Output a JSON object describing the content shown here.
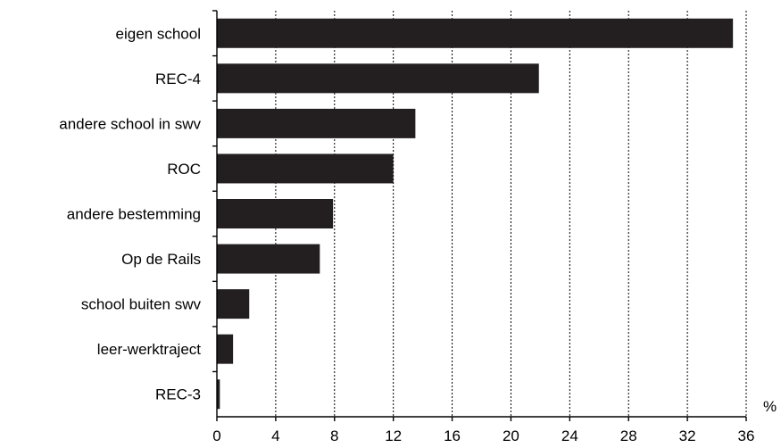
{
  "chart_data": {
    "type": "bar",
    "orientation": "horizontal",
    "title": "",
    "xlabel": "",
    "ylabel": "",
    "unit_label": "%",
    "categories": [
      "eigen school",
      "REC-4",
      "andere school in swv",
      "ROC",
      "andere bestemming",
      "Op de Rails",
      "school buiten swv",
      "leer-werktraject",
      "REC-3"
    ],
    "values": [
      35.1,
      21.9,
      13.5,
      12.0,
      7.9,
      7.0,
      2.2,
      1.1,
      0.2
    ],
    "xlim": [
      0,
      36
    ],
    "xticks": [
      "0",
      "4",
      "8",
      "12",
      "16",
      "20",
      "24",
      "28",
      "32",
      "36"
    ],
    "grid": "vertical dashed",
    "legend": "none",
    "bar_color": "#231f20"
  }
}
